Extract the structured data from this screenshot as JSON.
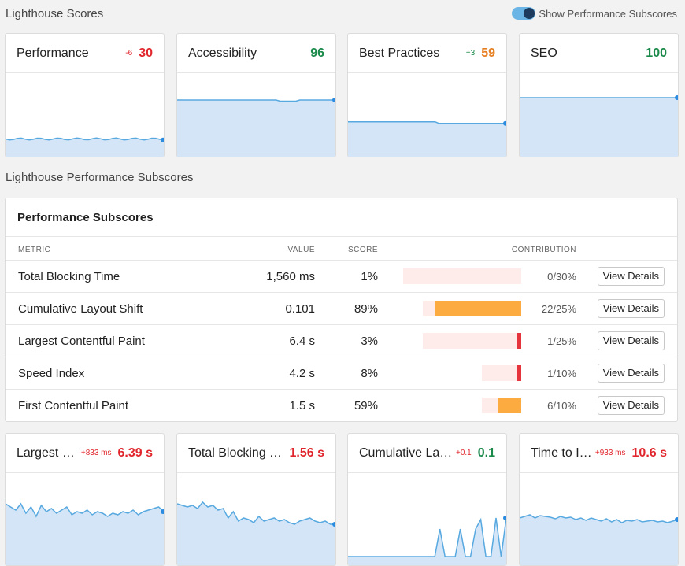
{
  "section1_title": "Lighthouse Scores",
  "toggle_label": "Show Performance Subscores",
  "score_cards": [
    {
      "title": "Performance",
      "delta": "-6",
      "score": "30",
      "score_color": "red",
      "delta_color": "red",
      "level": 0.3
    },
    {
      "title": "Accessibility",
      "delta": "",
      "score": "96",
      "score_color": "green",
      "delta_color": "green",
      "level": 0.96
    },
    {
      "title": "Best Practices",
      "delta": "+3",
      "score": "59",
      "score_color": "orange",
      "delta_color": "green",
      "level": 0.59
    },
    {
      "title": "SEO",
      "delta": "",
      "score": "100",
      "score_color": "green",
      "delta_color": "green",
      "level": 1.0
    }
  ],
  "section2_title": "Lighthouse Performance Subscores",
  "panel": {
    "title": "Performance Subscores",
    "headers": {
      "metric": "METRIC",
      "value": "VALUE",
      "score": "SCORE",
      "contribution": "CONTRIBUTION"
    },
    "button_label": "View Details",
    "rows": [
      {
        "metric": "Total Blocking Time",
        "value": "1,560 ms",
        "score": "1%",
        "contribution": "0/30%",
        "weight": 30,
        "earned": 0
      },
      {
        "metric": "Cumulative Layout Shift",
        "value": "0.101",
        "score": "89%",
        "contribution": "22/25%",
        "weight": 25,
        "earned": 22
      },
      {
        "metric": "Largest Contentful Paint",
        "value": "6.4 s",
        "score": "3%",
        "contribution": "1/25%",
        "weight": 25,
        "earned": 1
      },
      {
        "metric": "Speed Index",
        "value": "4.2 s",
        "score": "8%",
        "contribution": "1/10%",
        "weight": 10,
        "earned": 1
      },
      {
        "metric": "First Contentful Paint",
        "value": "1.5 s",
        "score": "59%",
        "contribution": "6/10%",
        "weight": 10,
        "earned": 6
      }
    ]
  },
  "metric_cards": [
    {
      "title": "Largest Contentful Paint",
      "delta": "+833 ms",
      "value": "6.39 s",
      "value_color": "red",
      "delta_color": "red"
    },
    {
      "title": "Total Blocking Time",
      "delta": "",
      "value": "1.56 s",
      "value_color": "red",
      "delta_color": "red"
    },
    {
      "title": "Cumulative Layout Shift",
      "delta": "+0.1",
      "value": "0.1",
      "value_color": "green",
      "delta_color": "red"
    },
    {
      "title": "Time to Interactive",
      "delta": "+933 ms",
      "value": "10.6 s",
      "value_color": "red",
      "delta_color": "red"
    }
  ],
  "colors": {
    "red": "#e0262c",
    "green": "#1a8a4a",
    "orange": "#e67e22",
    "bar_good": "#fbab3f",
    "bar_bad": "#e5343b",
    "bar_track": "#fdecea",
    "area": "#d4e5f7",
    "line": "#58a9e0"
  }
}
